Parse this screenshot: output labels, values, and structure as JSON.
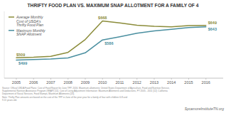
{
  "chart_data": {
    "type": "line",
    "title": "THRIFTY FOOD PLAN VS. MAXIMUM SNAP ALLOTMENT FOR A FAMILY OF 4",
    "x": [
      2005,
      2006,
      2007,
      2008,
      2009,
      2010,
      2011,
      2012,
      2013,
      2014,
      2015,
      2016
    ],
    "series": [
      {
        "name": "Average Monthly\nCost of USDA's\nThrifty Food Plan",
        "color": "#8b8c3a",
        "values": [
          509,
          511,
          515,
          532,
          588,
          668,
          660,
          650,
          645,
          643,
          648,
          649
        ],
        "value_labels": [
          "$509",
          null,
          null,
          null,
          null,
          "$668",
          null,
          null,
          null,
          null,
          null,
          "$649"
        ]
      },
      {
        "name": "Maximum Monthly\nSNAP Allotment",
        "color": "#4a8fa0",
        "values": [
          499,
          501,
          503,
          508,
          530,
          586,
          600,
          615,
          625,
          632,
          640,
          643
        ],
        "value_labels": [
          "$499",
          null,
          null,
          null,
          null,
          "$586",
          null,
          null,
          null,
          null,
          null,
          "$643"
        ]
      }
    ],
    "xlim": [
      2004.3,
      2017.0
    ],
    "xticks": [
      2005,
      2006,
      2007,
      2008,
      2009,
      2010,
      2011,
      2012,
      2013,
      2014,
      2015,
      2016
    ],
    "ylim": [
      420,
      710
    ],
    "tick_labels": "x",
    "grid": false,
    "legend": "upper left",
    "data_labels": true,
    "annotations": [
      "Source: Official USDA Food Plans: Cost of Food Report for June TFP, 2016. Maximum allotments: United States Department of Agriculture, Food and Nutrition Service,\nSupplemental Nutrition Assistance Program (SNAP) [11]. Cost of Living Adjustment Information: Maximum Allotments and Deductions, FY 2005 - 2011 [12]. California\nDepartment of Social Services, Food Stamps, Maximum Allotments [13].\nNote: Thrifty Plan amounts are based on the cost of the TFP in June of the prior year for a family of four with children 6-8 and\n9-11 years old.",
      "SycamoreInstituteTN.org"
    ]
  }
}
